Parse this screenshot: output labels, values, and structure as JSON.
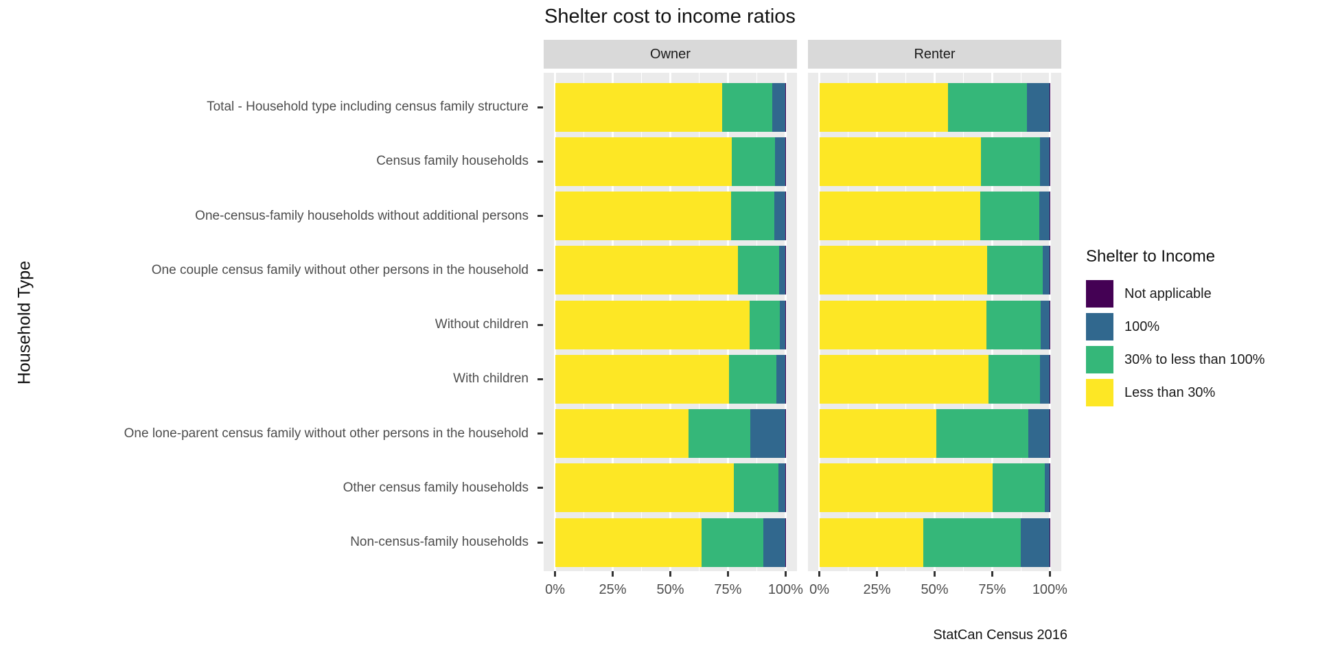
{
  "chart_data": {
    "type": "bar",
    "subtype": "horizontal-stacked-100pct-faceted",
    "title": "Shelter cost to income ratios",
    "caption": "StatCan Census 2016",
    "ylabel": "Household Type",
    "xlabel": "",
    "x_ticks": [
      "0%",
      "25%",
      "50%",
      "75%",
      "100%"
    ],
    "xlim": [
      0,
      100
    ],
    "grid": "on",
    "facets": [
      "Owner",
      "Renter"
    ],
    "legend": {
      "title": "Shelter to Income",
      "position": "right",
      "entries": [
        {
          "key": "na",
          "label": "Not applicable",
          "color": "#440154"
        },
        {
          "key": "p100",
          "label": "100%",
          "color": "#31688E"
        },
        {
          "key": "b30to100",
          "label": "30% to less than 100%",
          "color": "#35B779"
        },
        {
          "key": "lt30",
          "label": "Less than 30%",
          "color": "#FDE725"
        }
      ]
    },
    "stack_order": [
      "lt30",
      "b30to100",
      "p100",
      "na"
    ],
    "series_colors": {
      "lt30": "#FDE725",
      "b30to100": "#35B779",
      "p100": "#31688E",
      "na": "#440154"
    },
    "rows": [
      {
        "label": "Total - Household type including census family structure",
        "owner": {
          "lt30": 72.4,
          "b30to100": 21.7,
          "p100": 5.7,
          "na": 0.2
        },
        "renter": {
          "lt30": 55.8,
          "b30to100": 34.2,
          "p100": 9.8,
          "na": 0.2
        }
      },
      {
        "label": "Census family households",
        "owner": {
          "lt30": 76.8,
          "b30to100": 18.7,
          "p100": 4.3,
          "na": 0.2
        },
        "renter": {
          "lt30": 70.2,
          "b30to100": 25.4,
          "p100": 4.2,
          "na": 0.2
        }
      },
      {
        "label": "One-census-family households without additional persons",
        "owner": {
          "lt30": 76.4,
          "b30to100": 18.8,
          "p100": 4.6,
          "na": 0.2
        },
        "renter": {
          "lt30": 69.8,
          "b30to100": 25.5,
          "p100": 4.5,
          "na": 0.2
        }
      },
      {
        "label": "One couple census family without other persons in the household",
        "owner": {
          "lt30": 79.3,
          "b30to100": 18.0,
          "p100": 2.5,
          "na": 0.2
        },
        "renter": {
          "lt30": 72.7,
          "b30to100": 24.2,
          "p100": 2.9,
          "na": 0.2
        }
      },
      {
        "label": "Without children",
        "owner": {
          "lt30": 84.3,
          "b30to100": 13.3,
          "p100": 2.2,
          "na": 0.2
        },
        "renter": {
          "lt30": 72.5,
          "b30to100": 23.4,
          "p100": 3.9,
          "na": 0.2
        }
      },
      {
        "label": "With children",
        "owner": {
          "lt30": 75.4,
          "b30to100": 20.5,
          "p100": 3.9,
          "na": 0.2
        },
        "renter": {
          "lt30": 73.5,
          "b30to100": 22.1,
          "p100": 4.2,
          "na": 0.2
        }
      },
      {
        "label": "One lone-parent census family without other persons in the household",
        "owner": {
          "lt30": 57.9,
          "b30to100": 26.9,
          "p100": 15.0,
          "na": 0.2
        },
        "renter": {
          "lt30": 50.8,
          "b30to100": 39.9,
          "p100": 9.1,
          "na": 0.2
        }
      },
      {
        "label": "Other census family households",
        "owner": {
          "lt30": 77.4,
          "b30to100": 19.6,
          "p100": 2.8,
          "na": 0.2
        },
        "renter": {
          "lt30": 75.2,
          "b30to100": 22.7,
          "p100": 1.9,
          "na": 0.2
        }
      },
      {
        "label": "Non-census-family households",
        "owner": {
          "lt30": 63.7,
          "b30to100": 26.7,
          "p100": 9.4,
          "na": 0.2
        },
        "renter": {
          "lt30": 45.2,
          "b30to100": 42.3,
          "p100": 12.3,
          "na": 0.2
        }
      }
    ],
    "panel_bg_color": "#EBEBEB",
    "strip_bg_color": "#D9D9D9"
  }
}
